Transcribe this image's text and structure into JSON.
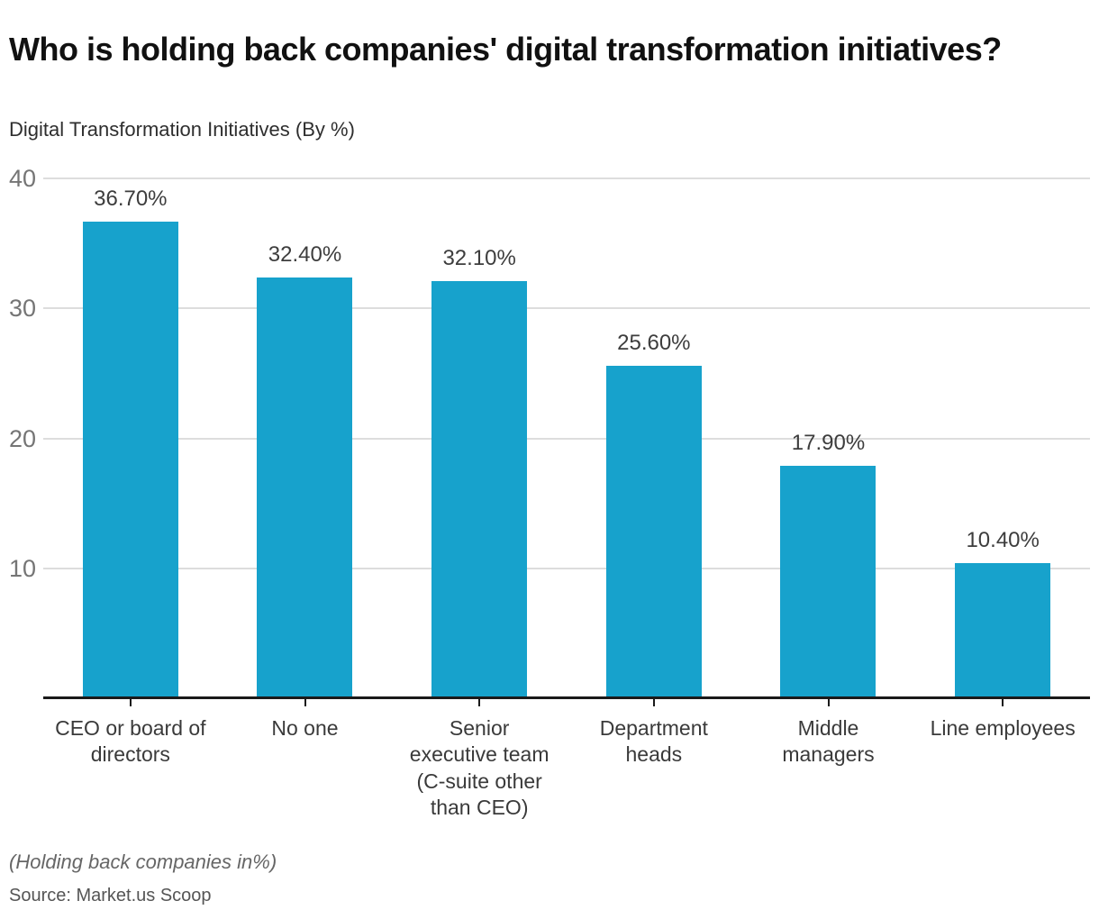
{
  "header": {
    "title": "Who is holding back companies' digital transformation initiatives?",
    "subtitle": "Digital Transformation Initiatives (By %)"
  },
  "chart_data": {
    "type": "bar",
    "categories": [
      "CEO or board of directors",
      "No one",
      "Senior executive team (C-suite other than CEO)",
      "Department heads",
      "Middle managers",
      "Line employees"
    ],
    "category_lines": [
      [
        "CEO or board of",
        "directors"
      ],
      [
        "No one"
      ],
      [
        "Senior",
        "executive team",
        "(C-suite other",
        "than CEO)"
      ],
      [
        "Department",
        "heads"
      ],
      [
        "Middle",
        "managers"
      ],
      [
        "Line employees"
      ]
    ],
    "values": [
      36.7,
      32.4,
      32.1,
      25.6,
      17.9,
      10.4
    ],
    "value_labels": [
      "36.70%",
      "32.40%",
      "32.10%",
      "25.60%",
      "17.90%",
      "10.40%"
    ],
    "title": "Who is holding back companies' digital transformation initiatives?",
    "subtitle": "Digital Transformation Initiatives (By %)",
    "xlabel": "",
    "ylabel": "",
    "ylim": [
      0,
      40
    ],
    "yticks": [
      10,
      20,
      30,
      40
    ],
    "grid": true,
    "legend": "none",
    "bar_color": "#17A2CC"
  },
  "colors": {
    "bar": "#17A2CC",
    "gridline": "#DDDDDD",
    "axis_line": "#1A1A1A",
    "ytick_label": "#757575",
    "value_label": "#3D3D3D",
    "category_label": "#3A3A3A",
    "title": "#111111",
    "note": "#666666",
    "source": "#555555"
  },
  "footer": {
    "note": "(Holding back companies in%)",
    "source": "Source: Market.us Scoop"
  }
}
